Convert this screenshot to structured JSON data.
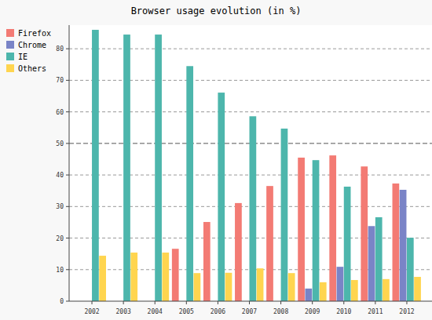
{
  "chart_data": {
    "type": "bar",
    "title": "Browser usage evolution (in %)",
    "categories": [
      "2002",
      "2003",
      "2004",
      "2005",
      "2006",
      "2007",
      "2008",
      "2009",
      "2010",
      "2011",
      "2012"
    ],
    "series": [
      {
        "name": "Firefox",
        "color": "#f37b74",
        "values": [
          null,
          null,
          null,
          16.6,
          25.1,
          31.1,
          36.5,
          45.5,
          46.2,
          42.7,
          37.3
        ]
      },
      {
        "name": "Chrome",
        "color": "#7a84c7",
        "values": [
          null,
          null,
          null,
          null,
          null,
          null,
          null,
          4.0,
          10.9,
          23.8,
          35.3
        ]
      },
      {
        "name": "IE",
        "color": "#4db6ac",
        "values": [
          86.0,
          84.5,
          84.5,
          74.5,
          66.1,
          58.6,
          54.7,
          44.7,
          36.3,
          26.6,
          20.1
        ]
      },
      {
        "name": "Others",
        "color": "#ffd54f",
        "values": [
          14.4,
          15.4,
          15.4,
          8.9,
          9.0,
          10.4,
          8.9,
          6.0,
          6.7,
          7.0,
          7.7
        ]
      }
    ],
    "ylim": [
      0,
      87.5
    ],
    "yticks": [
      0,
      10,
      20,
      30,
      40,
      50,
      60,
      70,
      80
    ],
    "grid": true,
    "legend": "top-left"
  }
}
